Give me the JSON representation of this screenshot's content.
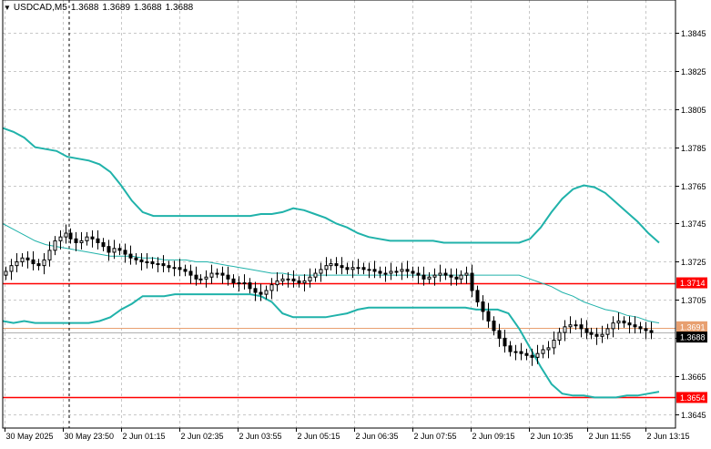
{
  "header": {
    "symbol": "USDCAD,M5",
    "ohlc": [
      "1.3688",
      "1.3689",
      "1.3688",
      "1.3688"
    ]
  },
  "colors": {
    "background": "#ffffff",
    "grid": "#c8c8c8",
    "candle": "#000000",
    "bollinger": "#20b2aa",
    "level_line": "#ff0000",
    "price_line": "#e8a070",
    "price_label_bg": "#000000",
    "level_label_bg": "#ff0000"
  },
  "chart_data": {
    "type": "candlestick",
    "instrument": "USDCAD",
    "timeframe": "M5",
    "ylim": [
      1.3638,
      1.3862
    ],
    "y_ticks": [
      "1.3845",
      "1.3825",
      "1.3805",
      "1.3785",
      "1.3765",
      "1.3745",
      "1.3725",
      "1.3705",
      "1.3685",
      "1.3665",
      "1.3645"
    ],
    "x_ticks": [
      "30 May 2025",
      "30 May 23:50",
      "2 Jun 01:15",
      "2 Jun 02:35",
      "2 Jun 03:55",
      "2 Jun 05:15",
      "2 Jun 06:35",
      "2 Jun 07:55",
      "2 Jun 09:15",
      "2 Jun 10:35",
      "2 Jun 11:55",
      "2 Jun 13:15"
    ],
    "levels": [
      {
        "label": "1.3714",
        "value": 1.3714
      },
      {
        "label": "1.3654",
        "value": 1.3654
      }
    ],
    "current_price": {
      "label": "1.3688",
      "value": 1.3688
    },
    "bid_label": "1.3691",
    "close_series": [
      1.372,
      1.3723,
      1.3725,
      1.3727,
      1.3726,
      1.3724,
      1.3723,
      1.3726,
      1.3731,
      1.3736,
      1.3738,
      1.374,
      1.3737,
      1.3735,
      1.3736,
      1.3738,
      1.3737,
      1.3735,
      1.3733,
      1.373,
      1.3732,
      1.3731,
      1.3729,
      1.3727,
      1.3726,
      1.3725,
      1.3725,
      1.3724,
      1.3724,
      1.3723,
      1.3722,
      1.3722,
      1.3721,
      1.372,
      1.3718,
      1.3716,
      1.3716,
      1.3717,
      1.3719,
      1.3719,
      1.3718,
      1.3716,
      1.3714,
      1.3714,
      1.3714,
      1.3711,
      1.3709,
      1.3708,
      1.371,
      1.3713,
      1.3715,
      1.3716,
      1.3716,
      1.3715,
      1.3714,
      1.3715,
      1.3717,
      1.3719,
      1.3721,
      1.3723,
      1.3724,
      1.3723,
      1.3722,
      1.3721,
      1.3722,
      1.3722,
      1.3721,
      1.3721,
      1.372,
      1.3719,
      1.3719,
      1.372,
      1.372,
      1.3721,
      1.372,
      1.3719,
      1.3718,
      1.3716,
      1.3717,
      1.3718,
      1.3719,
      1.3718,
      1.3717,
      1.3716,
      1.3718,
      1.3719,
      1.371,
      1.3704,
      1.3699,
      1.3694,
      1.3689,
      1.3685,
      1.3681,
      1.3678,
      1.3678,
      1.3677,
      1.3676,
      1.3675,
      1.3677,
      1.3679,
      1.368,
      1.3684,
      1.3688,
      1.3691,
      1.3692,
      1.3692,
      1.369,
      1.3688,
      1.3687,
      1.3686,
      1.3687,
      1.369,
      1.3693,
      1.3694,
      1.3693,
      1.3692,
      1.3691,
      1.369,
      1.3689,
      1.3688
    ],
    "bollinger_upper": [
      1.3795,
      1.3793,
      1.379,
      1.3785,
      1.3784,
      1.3783,
      1.378,
      1.3779,
      1.3778,
      1.3776,
      1.3772,
      1.3765,
      1.3757,
      1.3751,
      1.3749,
      1.3749,
      1.3749,
      1.3749,
      1.3749,
      1.3749,
      1.3749,
      1.3749,
      1.3749,
      1.3749,
      1.375,
      1.375,
      1.3751,
      1.3753,
      1.3752,
      1.375,
      1.3748,
      1.3745,
      1.3743,
      1.374,
      1.3738,
      1.3737,
      1.3736,
      1.3736,
      1.3736,
      1.3736,
      1.3736,
      1.3735,
      1.3735,
      1.3735,
      1.3735,
      1.3735,
      1.3735,
      1.3735,
      1.3735,
      1.3737,
      1.3743,
      1.3751,
      1.3758,
      1.3763,
      1.3765,
      1.3764,
      1.3761,
      1.3756,
      1.3751,
      1.3746,
      1.374,
      1.3735
    ],
    "bollinger_middle": [
      1.3745,
      1.3742,
      1.3739,
      1.3736,
      1.3734,
      1.3733,
      1.3732,
      1.3731,
      1.373,
      1.3729,
      1.3728,
      1.3728,
      1.3728,
      1.3727,
      1.3727,
      1.3726,
      1.3726,
      1.3726,
      1.3725,
      1.3725,
      1.3724,
      1.3723,
      1.3722,
      1.3721,
      1.372,
      1.3719,
      1.3719,
      1.3718,
      1.3718,
      1.3718,
      1.3718,
      1.3718,
      1.3718,
      1.3718,
      1.3718,
      1.3718,
      1.3718,
      1.3718,
      1.3718,
      1.3718,
      1.3718,
      1.3718,
      1.3718,
      1.3718,
      1.3718,
      1.3718,
      1.3718,
      1.3718,
      1.3718,
      1.3716,
      1.3714,
      1.3712,
      1.3709,
      1.3707,
      1.3704,
      1.3702,
      1.37,
      1.3699,
      1.3697,
      1.3696,
      1.3694,
      1.3693
    ],
    "bollinger_lower": [
      1.3694,
      1.3693,
      1.3694,
      1.3693,
      1.3693,
      1.3693,
      1.3693,
      1.3693,
      1.3693,
      1.3694,
      1.3696,
      1.37,
      1.3703,
      1.3707,
      1.3707,
      1.3707,
      1.3708,
      1.3708,
      1.3708,
      1.3708,
      1.3708,
      1.3708,
      1.3708,
      1.3708,
      1.3707,
      1.3704,
      1.3698,
      1.3696,
      1.3696,
      1.3696,
      1.3696,
      1.3697,
      1.3698,
      1.37,
      1.3701,
      1.3701,
      1.3701,
      1.3701,
      1.3701,
      1.3701,
      1.3701,
      1.3701,
      1.3701,
      1.3701,
      1.37,
      1.37,
      1.37,
      1.3698,
      1.369,
      1.368,
      1.367,
      1.3661,
      1.3656,
      1.3655,
      1.3655,
      1.3654,
      1.3654,
      1.3654,
      1.3655,
      1.3655,
      1.3656,
      1.3657
    ]
  }
}
